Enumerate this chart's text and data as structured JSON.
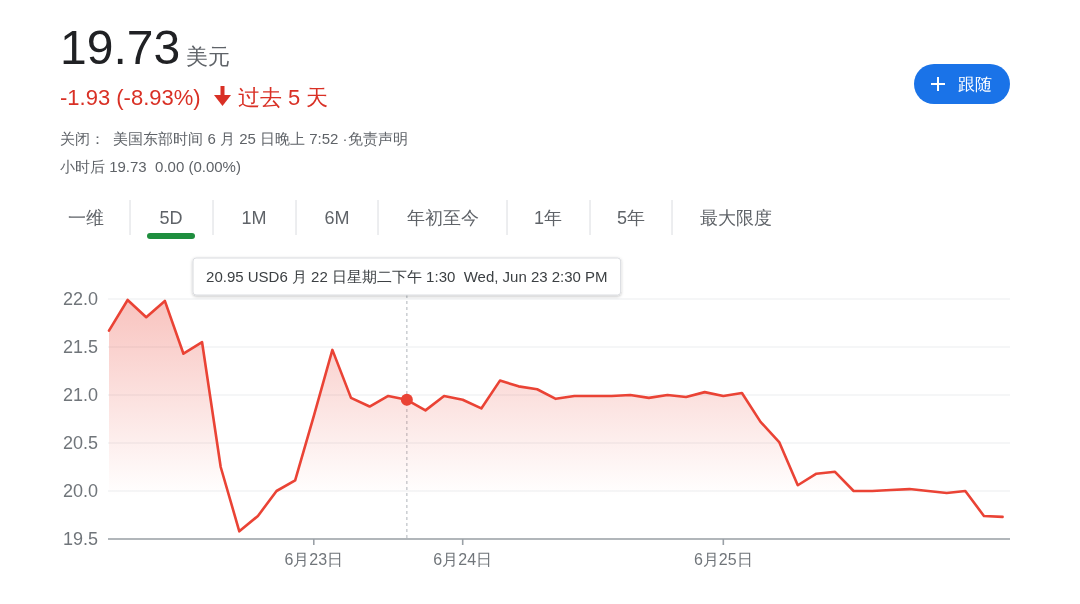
{
  "chart_data": {
    "type": "area",
    "title": "19.73",
    "subtitle": "-1.93 (-8.93%)",
    "categories": [
      null,
      null,
      null,
      null,
      null,
      null,
      null,
      null,
      null,
      null,
      null,
      "6月23日",
      null,
      null,
      null,
      null,
      null,
      null,
      null,
      "6月24日",
      null,
      null,
      null,
      null,
      null,
      null,
      null,
      null,
      null,
      null,
      null,
      null,
      null,
      "6月25日",
      null,
      null,
      null,
      null,
      null,
      null,
      null,
      null,
      null,
      null,
      null,
      null,
      null,
      null,
      null
    ],
    "values": [
      21.67,
      21.99,
      21.81,
      21.98,
      21.43,
      21.55,
      20.25,
      19.58,
      19.74,
      20.0,
      20.11,
      20.78,
      21.47,
      20.97,
      20.88,
      20.99,
      20.95,
      20.84,
      20.99,
      20.95,
      20.86,
      21.15,
      21.09,
      21.06,
      20.96,
      20.99,
      20.99,
      20.99,
      21.0,
      20.97,
      21.0,
      20.98,
      21.03,
      20.99,
      21.02,
      20.72,
      20.51,
      20.06,
      20.18,
      20.2,
      20.0,
      20.0,
      20.01,
      20.02,
      20.0,
      19.98,
      20.0,
      19.74,
      19.73
    ],
    "color": "#ea4335",
    "ylim": [
      19.5,
      22.0
    ],
    "yticks": [
      19.5,
      {
        "value": 20.0,
        "label": "20.0"
      },
      20.5,
      {
        "value": 21.0,
        "label": "21.0"
      },
      21.5,
      {
        "value": 22.0,
        "label": "22.0"
      }
    ],
    "grid": "y",
    "annotations": [
      "美元",
      "过去 5 天",
      "关闭：  美国东部时间 6 月 25 日晚上 7:52 ·免责声明",
      "小时后 19.73  0.00 (0.00%)",
      "一维",
      "5D",
      "1M",
      "6M",
      "年初至今",
      "1年",
      "5年",
      "最大限度",
      "跟随",
      "20.95 USD6 月 22 日星期二下午 1:30  Wed, Jun 23 2:30 PM"
    ]
  }
}
